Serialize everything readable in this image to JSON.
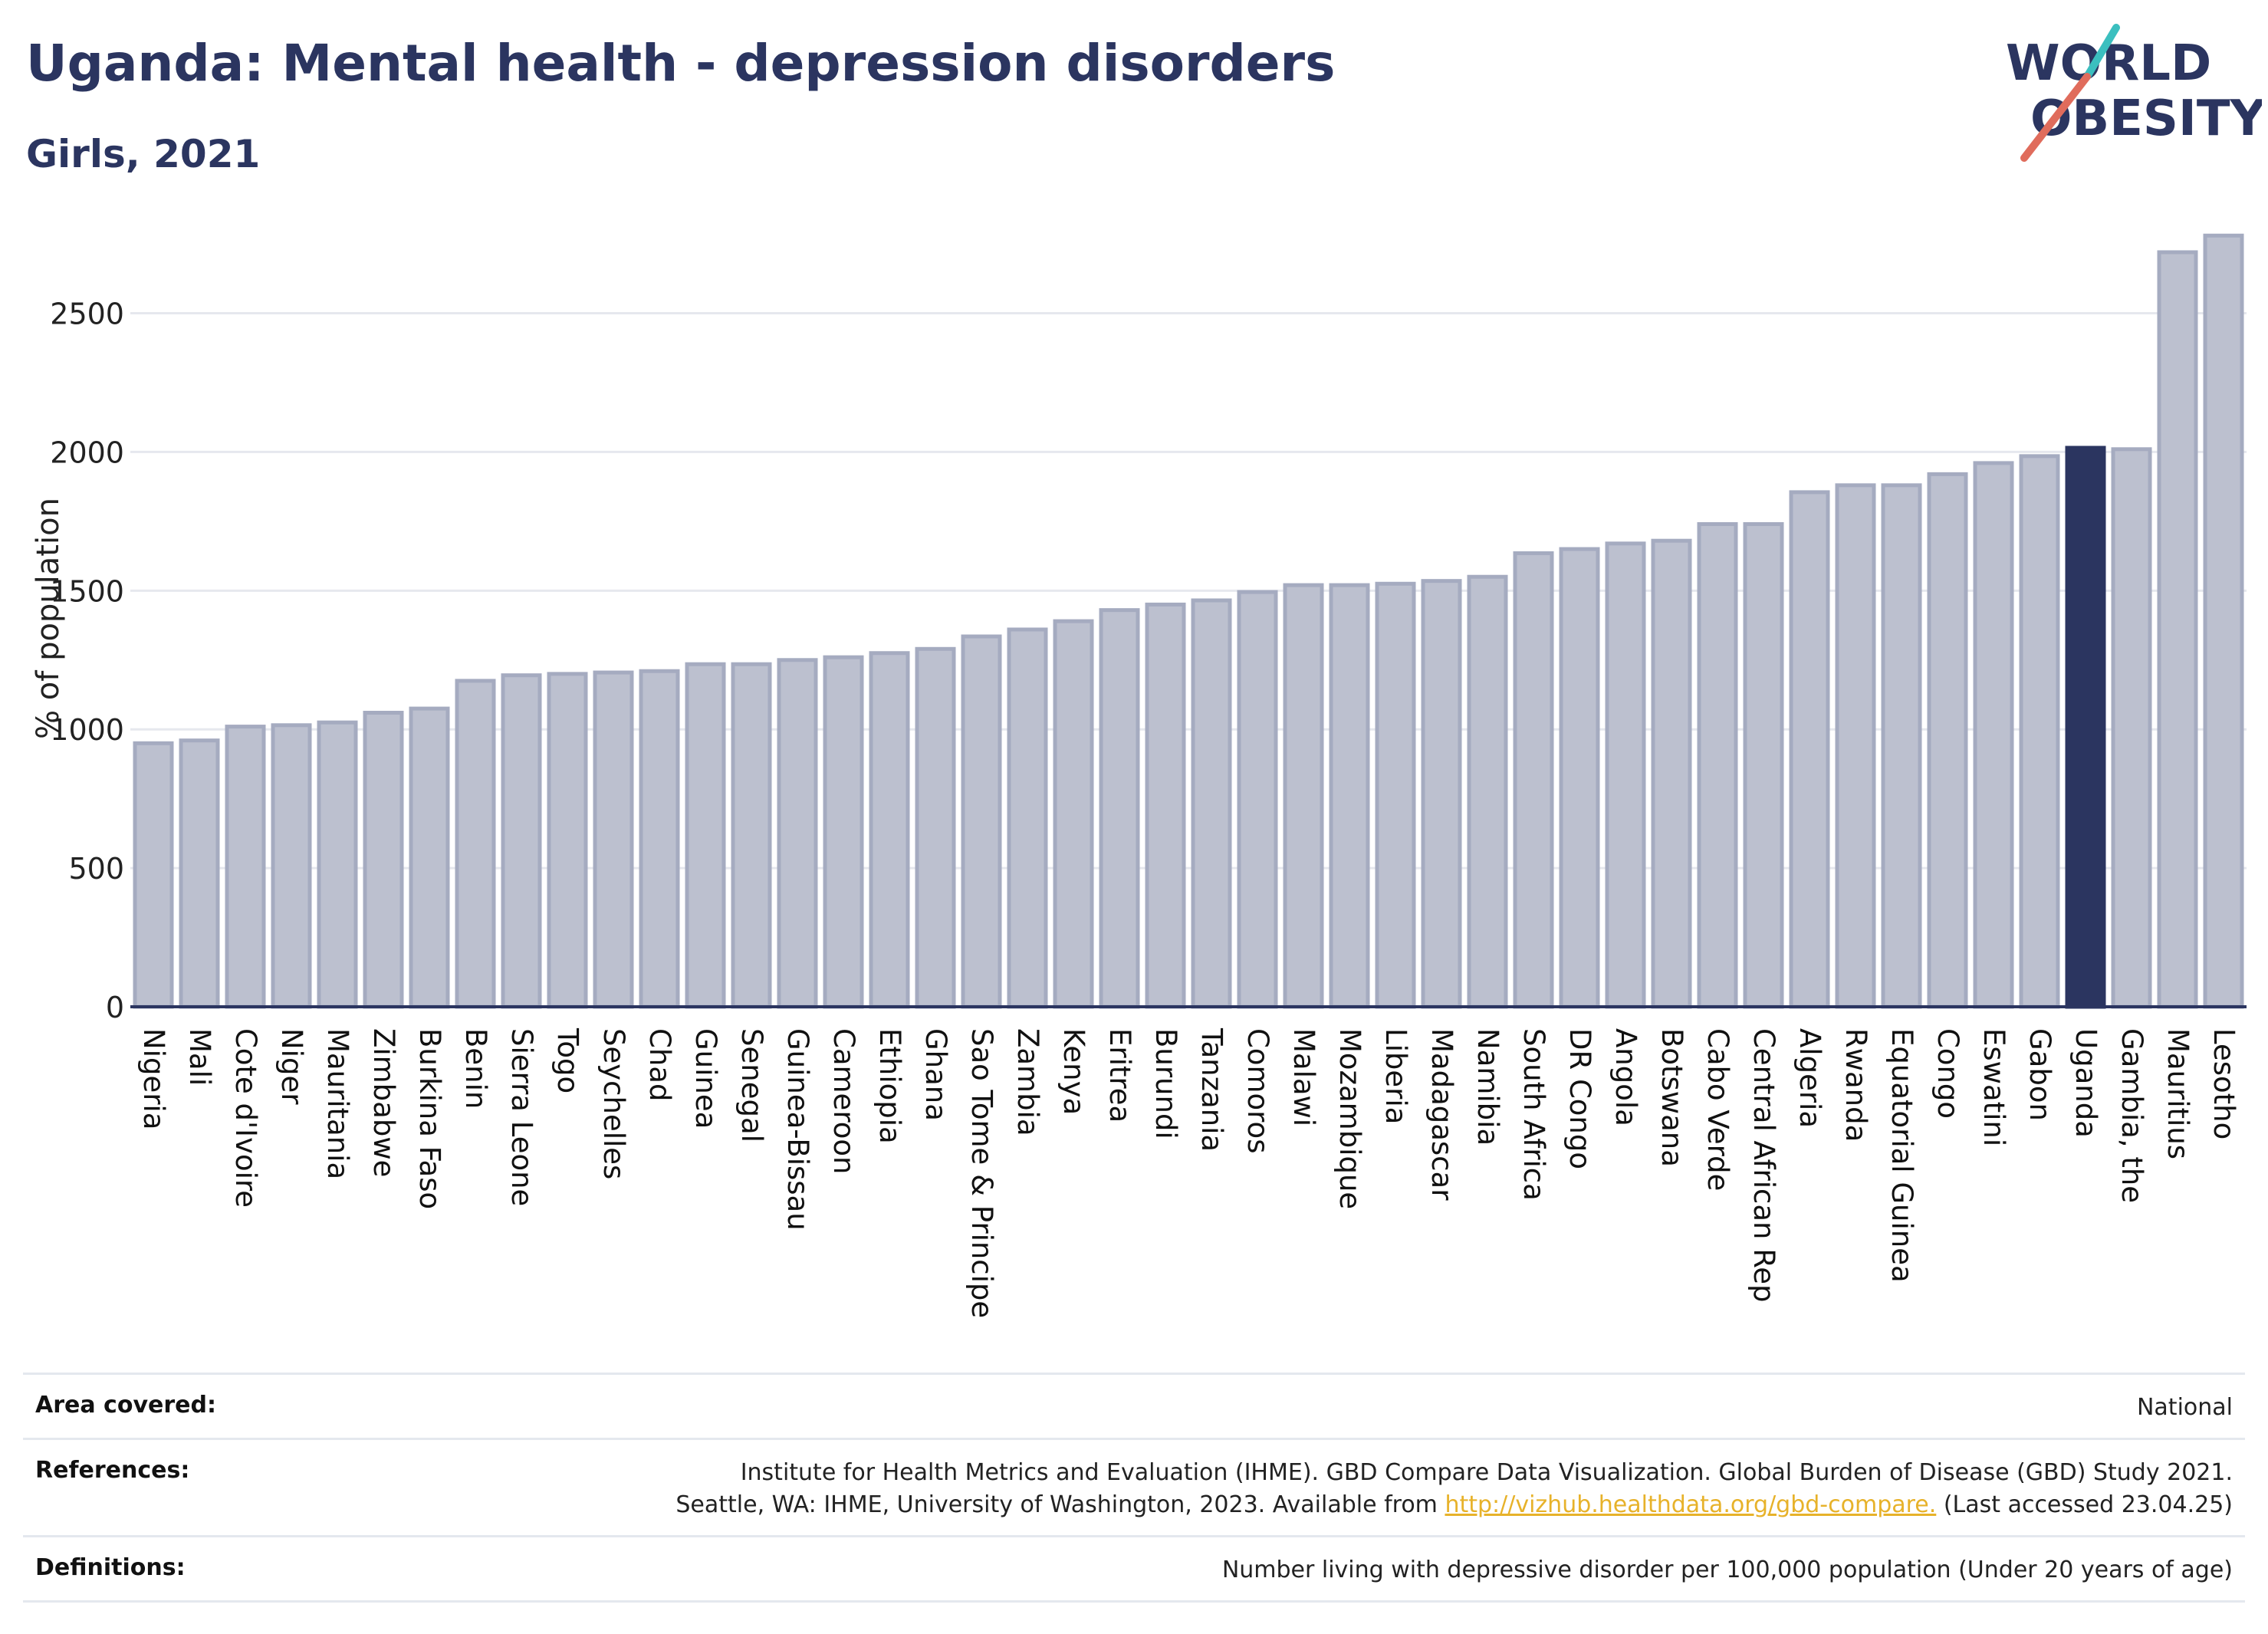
{
  "header": {
    "title": "Uganda: Mental health - depression disorders",
    "subtitle": "Girls, 2021"
  },
  "logo": {
    "line1": "WORLD",
    "line2": "OBESITY"
  },
  "chart_data": {
    "type": "bar",
    "title": "Uganda: Mental health - depression disorders",
    "subtitle": "Girls, 2021",
    "xlabel": "",
    "ylabel": "% of population",
    "ylim": [
      0,
      2800
    ],
    "yticks": [
      0,
      500,
      1000,
      1500,
      2000,
      2500
    ],
    "grid": true,
    "categories": [
      "Nigeria",
      "Mali",
      "Cote d'Ivoire",
      "Niger",
      "Mauritania",
      "Zimbabwe",
      "Burkina Faso",
      "Benin",
      "Sierra Leone",
      "Togo",
      "Seychelles",
      "Chad",
      "Guinea",
      "Senegal",
      "Guinea-Bissau",
      "Cameroon",
      "Ethiopia",
      "Ghana",
      "Sao Tome & Principe",
      "Zambia",
      "Kenya",
      "Eritrea",
      "Burundi",
      "Tanzania",
      "Comoros",
      "Malawi",
      "Mozambique",
      "Liberia",
      "Madagascar",
      "Namibia",
      "South Africa",
      "DR Congo",
      "Angola",
      "Botswana",
      "Cabo Verde",
      "Central African Rep",
      "Algeria",
      "Rwanda",
      "Equatorial Guinea",
      "Congo",
      "Eswatini",
      "Gabon",
      "Uganda",
      "Gambia, the",
      "Mauritius",
      "Lesotho"
    ],
    "values": [
      950,
      960,
      1010,
      1015,
      1025,
      1060,
      1075,
      1175,
      1195,
      1200,
      1205,
      1210,
      1235,
      1235,
      1250,
      1260,
      1275,
      1290,
      1335,
      1360,
      1390,
      1430,
      1450,
      1465,
      1495,
      1520,
      1520,
      1525,
      1535,
      1550,
      1635,
      1650,
      1670,
      1680,
      1740,
      1740,
      1855,
      1880,
      1880,
      1920,
      1960,
      1985,
      2015,
      2010,
      2720,
      2780
    ],
    "highlight": "Uganda",
    "colors": {
      "bar": "#bcc0cf",
      "bar_border": "#a5abc0",
      "highlight": "#2b3560",
      "grid": "#e6e8ee",
      "axis": "#2b3560"
    }
  },
  "footer": {
    "area_label": "Area covered:",
    "area_value": "National",
    "references_label": "References:",
    "references_line1": "Institute for Health Metrics and Evaluation (IHME). GBD Compare Data Visualization. Global Burden of Disease (GBD) Study 2021.",
    "references_line2_pre": "Seattle, WA: IHME, University of Washington, 2023. Available from ",
    "references_link": "http://vizhub.healthdata.org/gbd-compare.",
    "references_line2_post": " (Last accessed 23.04.25)",
    "definitions_label": "Definitions:",
    "definitions_value": "Number living with depressive disorder per 100,000 population (Under 20 years of age)"
  }
}
